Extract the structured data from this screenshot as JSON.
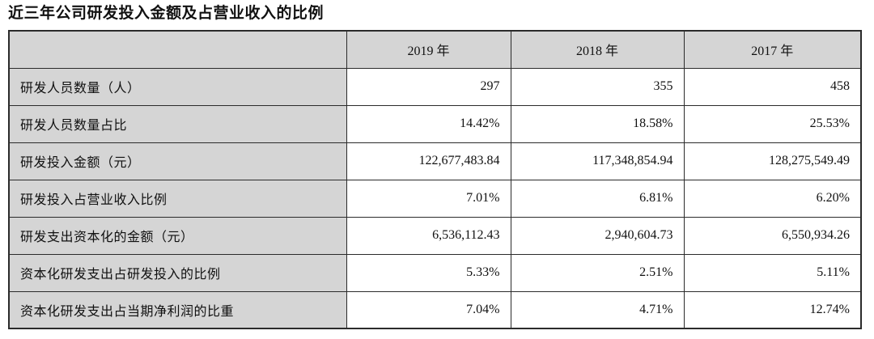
{
  "title": "近三年公司研发投入金额及占营业收入的比例",
  "table": {
    "header": {
      "corner": "",
      "years": [
        "2019 年",
        "2018 年",
        "2017 年"
      ]
    },
    "rows": [
      {
        "label": "研发人员数量（人）",
        "values": [
          "297",
          "355",
          "458"
        ]
      },
      {
        "label": "研发人员数量占比",
        "values": [
          "14.42%",
          "18.58%",
          "25.53%"
        ]
      },
      {
        "label": "研发投入金额（元）",
        "values": [
          "122,677,483.84",
          "117,348,854.94",
          "128,275,549.49"
        ]
      },
      {
        "label": "研发投入占营业收入比例",
        "values": [
          "7.01%",
          "6.81%",
          "6.20%"
        ]
      },
      {
        "label": "研发支出资本化的金额（元）",
        "values": [
          "6,536,112.43",
          "2,940,604.73",
          "6,550,934.26"
        ]
      },
      {
        "label": "资本化研发支出占研发投入的比例",
        "values": [
          "5.33%",
          "2.51%",
          "5.11%"
        ]
      },
      {
        "label": "资本化研发支出占当期净利润的比重",
        "values": [
          "7.04%",
          "4.71%",
          "12.74%"
        ]
      }
    ]
  },
  "colors": {
    "header_bg": "#d5d5d5",
    "label_column_bg": "#d5d5d5",
    "border": "#2b2b2b",
    "text": "#111111",
    "page_bg": "#ffffff"
  }
}
